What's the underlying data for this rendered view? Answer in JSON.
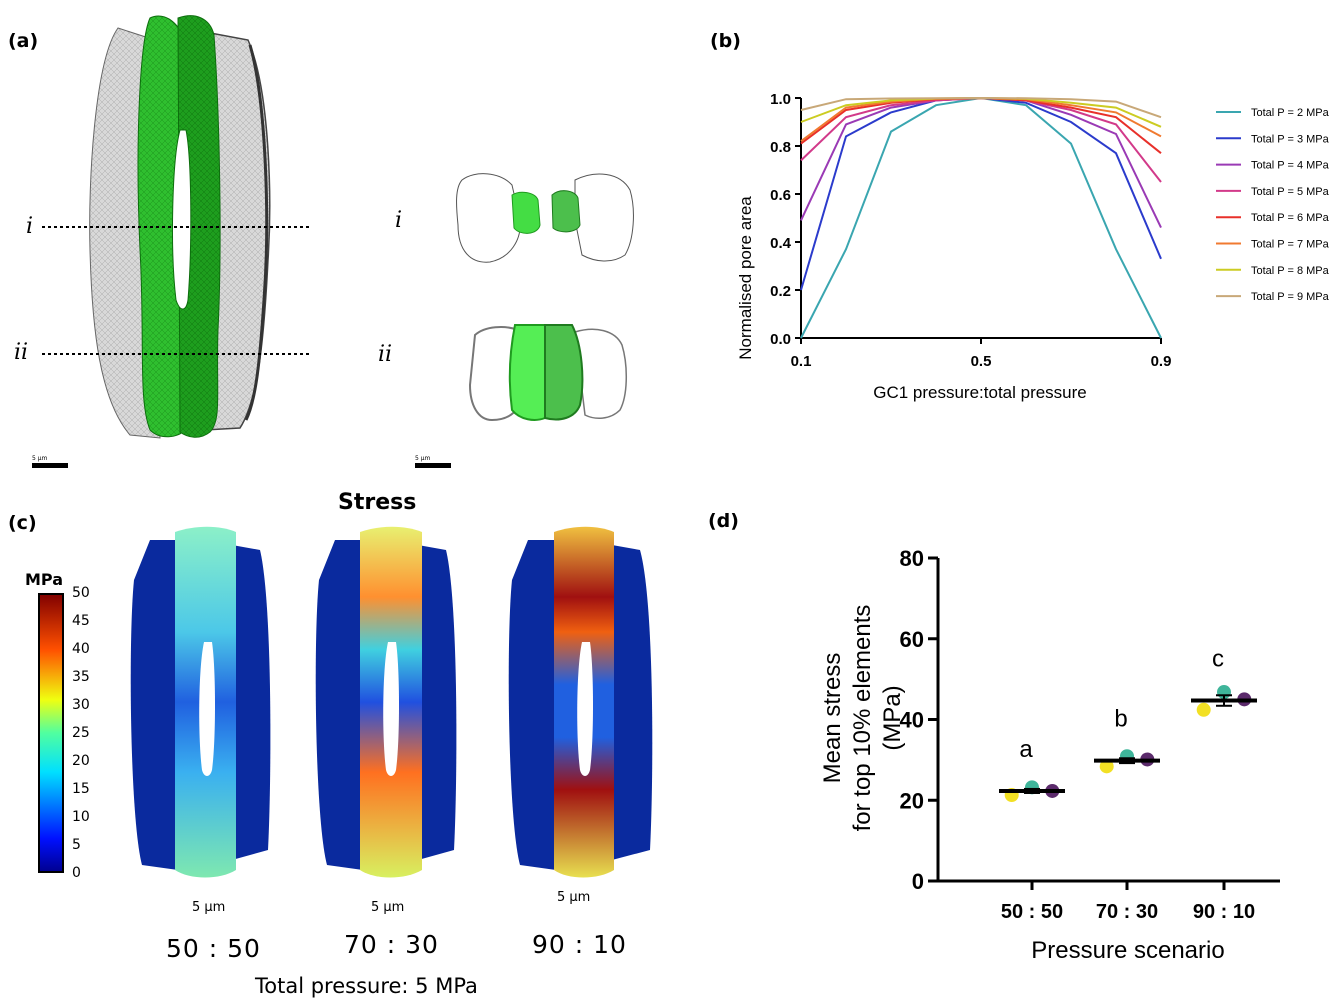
{
  "panels": {
    "a": {
      "label": "(a)",
      "section_i": "i",
      "section_ii": "ii",
      "scale_text": "5 µm"
    },
    "b": {
      "label": "(b)"
    },
    "c": {
      "label": "(c)",
      "title": "Stress",
      "colorbar_unit": "MPa",
      "colorbar_ticks": [
        "50",
        "45",
        "40",
        "35",
        "30",
        "25",
        "20",
        "15",
        "10",
        "5",
        "0"
      ],
      "scale_text": "5 µm",
      "scenarios": [
        "50 : 50",
        "70 : 30",
        "90 : 10"
      ],
      "footer": "Total pressure: 5 MPa"
    },
    "d": {
      "label": "(d)"
    }
  },
  "colors": {
    "cell_green_light": "#44dd44",
    "cell_green_dark": "#1f9b1f",
    "mesh_grey": "#d6d6d6",
    "stress_blue": "#0a2a9e"
  },
  "chart_data": [
    {
      "type": "line",
      "panel": "b",
      "xlabel": "GC1 pressure:total pressure",
      "ylabel": "Normalised pore area",
      "xlim": [
        0.1,
        0.9
      ],
      "ylim": [
        0.0,
        1.0
      ],
      "xticks": [
        "0.1",
        "0.5",
        "0.9"
      ],
      "yticks": [
        "0.0",
        "0.2",
        "0.4",
        "0.6",
        "0.8",
        "1.0"
      ],
      "legend_position": "right",
      "x": [
        0.1,
        0.2,
        0.3,
        0.4,
        0.5,
        0.6,
        0.7,
        0.8,
        0.9
      ],
      "series": [
        {
          "name": "Total P = 2 MPa",
          "color": "#3aa6b0",
          "values": [
            0.0,
            0.37,
            0.86,
            0.97,
            1.0,
            0.97,
            0.81,
            0.37,
            0.0
          ]
        },
        {
          "name": "Total P = 3 MPa",
          "color": "#2b3bcc",
          "values": [
            0.2,
            0.84,
            0.94,
            0.99,
            1.0,
            0.98,
            0.9,
            0.77,
            0.33
          ]
        },
        {
          "name": "Total P = 4 MPa",
          "color": "#9a3ab5",
          "values": [
            0.49,
            0.89,
            0.96,
            0.99,
            1.0,
            0.99,
            0.93,
            0.85,
            0.46
          ]
        },
        {
          "name": "Total P = 5 MPa",
          "color": "#d23a8a",
          "values": [
            0.74,
            0.92,
            0.97,
            0.99,
            1.0,
            0.99,
            0.95,
            0.89,
            0.65
          ]
        },
        {
          "name": "Total P = 6 MPa",
          "color": "#e8302a",
          "values": [
            0.81,
            0.95,
            0.98,
            0.995,
            1.0,
            0.99,
            0.96,
            0.92,
            0.77
          ]
        },
        {
          "name": "Total P = 7 MPa",
          "color": "#f07a30",
          "values": [
            0.82,
            0.96,
            0.985,
            0.997,
            1.0,
            0.995,
            0.97,
            0.94,
            0.84
          ]
        },
        {
          "name": "Total P = 8 MPa",
          "color": "#cccc22",
          "values": [
            0.9,
            0.97,
            0.99,
            0.998,
            1.0,
            0.997,
            0.98,
            0.96,
            0.88
          ]
        },
        {
          "name": "Total P = 9 MPa",
          "color": "#c8a878",
          "values": [
            0.95,
            0.995,
            0.998,
            0.999,
            1.0,
            0.999,
            0.995,
            0.985,
            0.92
          ]
        }
      ]
    },
    {
      "type": "scatter",
      "panel": "d",
      "xlabel": "Pressure scenario",
      "ylabel": "Mean stress for top 10% elements (MPa)",
      "ylabel_lines": [
        "Mean stress",
        "for top 10% elements",
        "(MPa)"
      ],
      "ylim": [
        0,
        80
      ],
      "yticks": [
        "0",
        "20",
        "40",
        "60",
        "80"
      ],
      "categories": [
        "50 : 50",
        "70 : 30",
        "90 : 10"
      ],
      "means": [
        22.3,
        29.8,
        44.7
      ],
      "sem": [
        0.5,
        0.6,
        1.3
      ],
      "significance_letters": [
        "a",
        "b",
        "c"
      ],
      "points": [
        [
          {
            "v": 21.3,
            "color": "#f2e024"
          },
          {
            "v": 23.2,
            "color": "#3fb59a"
          },
          {
            "v": 22.3,
            "color": "#5b2a6b"
          }
        ],
        [
          {
            "v": 28.4,
            "color": "#f2e024"
          },
          {
            "v": 30.9,
            "color": "#3fb59a"
          },
          {
            "v": 30.1,
            "color": "#5b2a6b"
          }
        ],
        [
          {
            "v": 42.4,
            "color": "#f2e024"
          },
          {
            "v": 46.8,
            "color": "#3fb59a"
          },
          {
            "v": 45.0,
            "color": "#5b2a6b"
          }
        ]
      ]
    }
  ]
}
